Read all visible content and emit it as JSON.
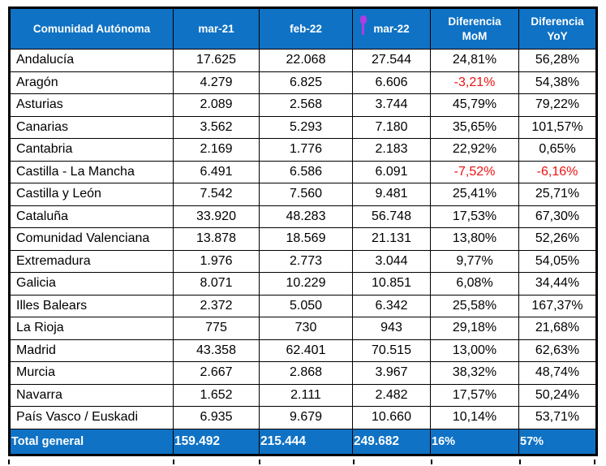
{
  "chart_data": {
    "type": "table",
    "title": "",
    "columns": [
      "Comunidad Autónoma",
      "mar-21",
      "feb-22",
      "mar-22",
      "Diferencia MoM",
      "Diferencia YoY"
    ],
    "rows": [
      [
        "Andalucía",
        "17.625",
        "22.068",
        "27.544",
        "24,81%",
        "56,28%"
      ],
      [
        "Aragón",
        "4.279",
        "6.825",
        "6.606",
        "-3,21%",
        "54,38%"
      ],
      [
        "Asturias",
        "2.089",
        "2.568",
        "3.744",
        "45,79%",
        "79,22%"
      ],
      [
        "Canarias",
        "3.562",
        "5.293",
        "7.180",
        "35,65%",
        "101,57%"
      ],
      [
        "Cantabria",
        "2.169",
        "1.776",
        "2.183",
        "22,92%",
        "0,65%"
      ],
      [
        "Castilla - La Mancha",
        "6.491",
        "6.586",
        "6.091",
        "-7,52%",
        "-6,16%"
      ],
      [
        "Castilla y León",
        "7.542",
        "7.560",
        "9.481",
        "25,41%",
        "25,71%"
      ],
      [
        "Cataluña",
        "33.920",
        "48.283",
        "56.748",
        "17,53%",
        "67,30%"
      ],
      [
        "Comunidad Valenciana",
        "13.878",
        "18.569",
        "21.131",
        "13,80%",
        "52,26%"
      ],
      [
        "Extremadura",
        "1.976",
        "2.773",
        "3.044",
        "9,77%",
        "54,05%"
      ],
      [
        "Galicia",
        "8.071",
        "10.229",
        "10.851",
        "6,08%",
        "34,44%"
      ],
      [
        "Illes Balears",
        "2.372",
        "5.050",
        "6.342",
        "25,58%",
        "167,37%"
      ],
      [
        "La Rioja",
        "775",
        "730",
        "943",
        "29,18%",
        "21,68%"
      ],
      [
        "Madrid",
        "43.358",
        "62.401",
        "70.515",
        "13,00%",
        "62,63%"
      ],
      [
        "Murcia",
        "2.667",
        "2.868",
        "3.967",
        "38,32%",
        "48,74%"
      ],
      [
        "Navarra",
        "1.652",
        "2.111",
        "2.482",
        "17,57%",
        "50,24%"
      ],
      [
        "País Vasco / Euskadi",
        "6.935",
        "9.679",
        "10.660",
        "10,14%",
        "53,71%"
      ]
    ],
    "total_row": [
      "Total general",
      "159.492",
      "215.444",
      "249.682",
      "16%",
      "57%"
    ]
  },
  "colors": {
    "header-bg": "#0F72C4",
    "total-bg": "#0F72C4",
    "negative": "#EE1111",
    "cursor": "#B03BE3",
    "border": "#000000"
  }
}
